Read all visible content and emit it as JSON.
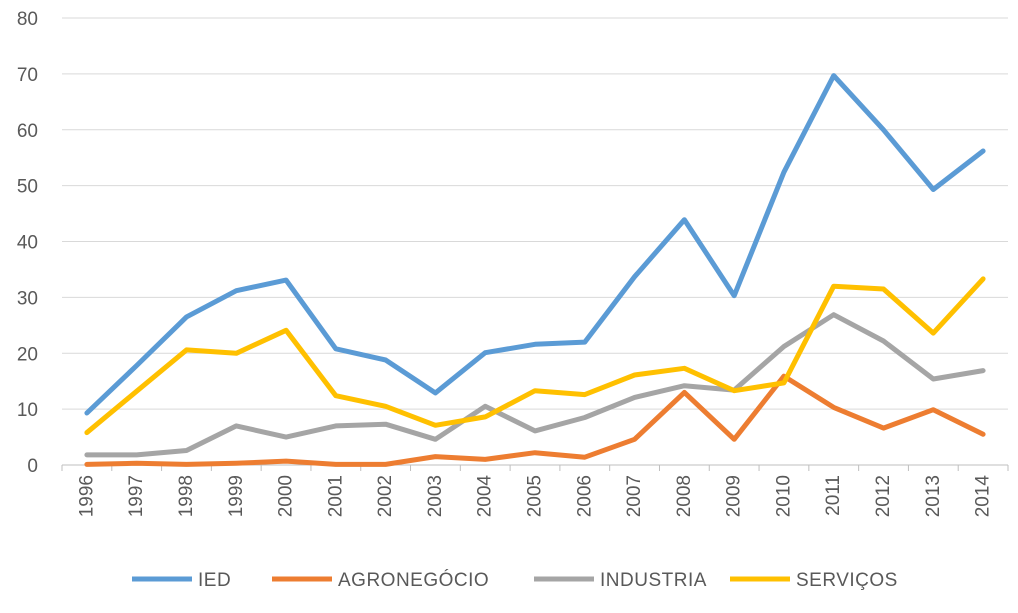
{
  "chart_data": {
    "type": "line",
    "title": "",
    "xlabel": "",
    "ylabel": "",
    "x": [
      "1996",
      "1997",
      "1998",
      "1999",
      "2000",
      "2001",
      "2002",
      "2003",
      "2004",
      "2005",
      "2006",
      "2007",
      "2008",
      "2009",
      "2010",
      "2011",
      "2012",
      "2013",
      "2014"
    ],
    "ylim": [
      0,
      80
    ],
    "yticks": [
      "0",
      "10",
      "20",
      "30",
      "40",
      "50",
      "60",
      "70",
      "80"
    ],
    "grid": true,
    "legend_position": "bottom",
    "series": [
      {
        "name": "IED",
        "color": "#5b9bd5",
        "values": [
          9.3,
          17.8,
          26.5,
          31.2,
          33.1,
          20.8,
          18.8,
          12.9,
          20.1,
          21.6,
          22.0,
          33.7,
          43.9,
          30.3,
          52.4,
          69.7,
          60.0,
          49.3,
          56.2
        ]
      },
      {
        "name": "AGRONEGÓCIO",
        "color": "#ed7d31",
        "values": [
          0.1,
          0.3,
          0.1,
          0.3,
          0.7,
          0.1,
          0.1,
          1.5,
          1.0,
          2.2,
          1.4,
          4.6,
          13.0,
          4.6,
          15.9,
          10.3,
          6.6,
          9.9,
          5.5
        ]
      },
      {
        "name": "INDUSTRIA",
        "color": "#a5a5a5",
        "values": [
          1.8,
          1.8,
          2.6,
          7.0,
          5.0,
          7.0,
          7.3,
          4.6,
          10.5,
          6.1,
          8.5,
          12.1,
          14.2,
          13.4,
          21.2,
          26.9,
          22.2,
          15.4,
          16.9
        ]
      },
      {
        "name": "SERVIÇOS",
        "color": "#ffc000",
        "values": [
          5.8,
          13.2,
          20.6,
          20.0,
          24.1,
          12.4,
          10.5,
          7.1,
          8.6,
          13.3,
          12.6,
          16.1,
          17.3,
          13.3,
          14.7,
          32.0,
          31.5,
          23.6,
          33.3
        ]
      }
    ]
  }
}
